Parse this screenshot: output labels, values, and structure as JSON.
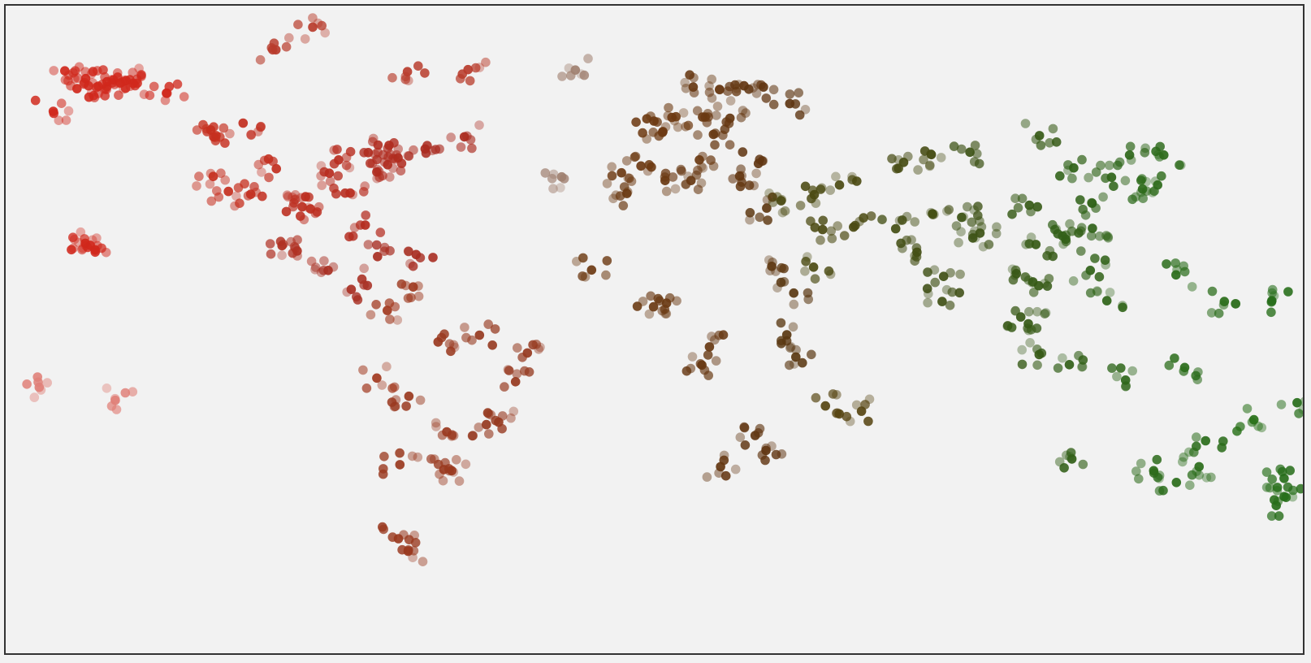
{
  "map": {
    "projection": "equirectangular",
    "marker_type": "dot",
    "colors": {
      "background": "#f2f2f2",
      "border": "#333333",
      "americas": "#c92c1f",
      "south_america": "#a23a20",
      "europe_africa": "#6d3a12",
      "middle_east_south_asia": "#4b4a12",
      "east_asia_oceania": "#2f6518"
    },
    "data_points": [
      {
        "region": "alaska",
        "lon": -151.9,
        "lat": 61.2,
        "color": "#d0281c"
      },
      {
        "region": "alaska",
        "lon": -150.1,
        "lat": 61.7,
        "color": "#d0281c"
      },
      {
        "region": "alaska",
        "lon": -148.2,
        "lat": 60.9,
        "color": "#d0281c"
      },
      {
        "region": "alaska",
        "lon": -146.6,
        "lat": 61.5,
        "color": "#d0281c"
      },
      {
        "region": "alaska",
        "lon": -144.6,
        "lat": 60.8,
        "color": "#d0281c"
      },
      {
        "region": "alaska",
        "lon": -154.3,
        "lat": 60.1,
        "color": "#d0281c"
      },
      {
        "region": "alaska",
        "lon": -157.8,
        "lat": 62.0,
        "color": "#d0281c"
      },
      {
        "region": "alaska",
        "lon": -160.2,
        "lat": 59.5,
        "color": "#d0281c"
      },
      {
        "region": "alaska",
        "lon": -163.6,
        "lat": 63.9,
        "color": "#d0281c"
      },
      {
        "region": "alaska",
        "lon": -166.8,
        "lat": 53.9,
        "color": "#d0281c"
      },
      {
        "region": "alaska",
        "lon": -135.4,
        "lat": 58.4,
        "color": "#d0281c"
      },
      {
        "region": "hawaii",
        "lon": -157.9,
        "lat": 21.3,
        "color": "#d0281c"
      },
      {
        "region": "hawaii",
        "lon": -156.5,
        "lat": 20.8,
        "color": "#d0281c"
      },
      {
        "region": "hawaii",
        "lon": -155.2,
        "lat": 19.7,
        "color": "#d0281c"
      },
      {
        "region": "pacific",
        "lon": -170.7,
        "lat": -14.3,
        "color": "#e08078"
      },
      {
        "region": "pacific",
        "lon": -149.6,
        "lat": -17.5,
        "color": "#e08078"
      },
      {
        "region": "us",
        "lon": -122.4,
        "lat": 37.8,
        "color": "#c63020"
      },
      {
        "region": "us",
        "lon": -118.2,
        "lat": 34.1,
        "color": "#c63020"
      },
      {
        "region": "us",
        "lon": -122.3,
        "lat": 47.6,
        "color": "#c63020"
      },
      {
        "region": "us",
        "lon": -104.9,
        "lat": 39.7,
        "color": "#c22f20"
      },
      {
        "region": "us",
        "lon": -112.0,
        "lat": 33.4,
        "color": "#c22f20"
      },
      {
        "region": "us",
        "lon": -97.7,
        "lat": 30.3,
        "color": "#bc2e20"
      },
      {
        "region": "us",
        "lon": -95.4,
        "lat": 29.8,
        "color": "#bc2e20"
      },
      {
        "region": "us",
        "lon": -96.8,
        "lat": 32.8,
        "color": "#bc2e20"
      },
      {
        "region": "us",
        "lon": -87.6,
        "lat": 41.9,
        "color": "#b82d20"
      },
      {
        "region": "us",
        "lon": -90.2,
        "lat": 38.6,
        "color": "#b82d20"
      },
      {
        "region": "us",
        "lon": -84.4,
        "lat": 33.7,
        "color": "#b82d20"
      },
      {
        "region": "us",
        "lon": -80.2,
        "lat": 25.8,
        "color": "#b42c20"
      },
      {
        "region": "us",
        "lon": -77.0,
        "lat": 38.9,
        "color": "#b02c20"
      },
      {
        "region": "us",
        "lon": -74.0,
        "lat": 40.7,
        "color": "#b02c20"
      },
      {
        "region": "us",
        "lon": -71.1,
        "lat": 42.4,
        "color": "#b02c20"
      },
      {
        "region": "canada",
        "lon": -79.4,
        "lat": 43.7,
        "color": "#b02c20"
      },
      {
        "region": "canada",
        "lon": -73.6,
        "lat": 45.5,
        "color": "#b02c20"
      },
      {
        "region": "canada",
        "lon": -123.1,
        "lat": 49.3,
        "color": "#c63020"
      },
      {
        "region": "canada",
        "lon": -114.1,
        "lat": 51.0,
        "color": "#c22f20"
      },
      {
        "region": "canada",
        "lon": -63.6,
        "lat": 44.6,
        "color": "#aa2b20"
      },
      {
        "region": "canada",
        "lon": -52.7,
        "lat": 47.6,
        "color": "#aa2b20"
      },
      {
        "region": "canada_north",
        "lon": -105.0,
        "lat": 69.1,
        "color": "#b83c2c"
      },
      {
        "region": "canada_north",
        "lon": -94.8,
        "lat": 74.7,
        "color": "#b83c2c"
      },
      {
        "region": "canada_north",
        "lon": -68.5,
        "lat": 63.7,
        "color": "#b83c2c"
      },
      {
        "region": "greenland",
        "lon": -51.7,
        "lat": 64.2,
        "color": "#b83c2c"
      },
      {
        "region": "mexico",
        "lon": -99.1,
        "lat": 19.4,
        "color": "#b03224"
      },
      {
        "region": "mexico",
        "lon": -103.3,
        "lat": 20.7,
        "color": "#b03224"
      },
      {
        "region": "central_america",
        "lon": -90.5,
        "lat": 14.6,
        "color": "#a83024"
      },
      {
        "region": "central_america",
        "lon": -84.1,
        "lat": 9.9,
        "color": "#a83024"
      },
      {
        "region": "caribbean",
        "lon": -66.1,
        "lat": 18.5,
        "color": "#a82e22"
      },
      {
        "region": "caribbean",
        "lon": -76.8,
        "lat": 18.0,
        "color": "#a82e22"
      },
      {
        "region": "south_america",
        "lon": -74.1,
        "lat": 4.7,
        "color": "#a23a20"
      },
      {
        "region": "south_america",
        "lon": -77.0,
        "lat": -12.0,
        "color": "#a23a20"
      },
      {
        "region": "south_america",
        "lon": -70.6,
        "lat": -33.4,
        "color": "#9a3a20"
      },
      {
        "region": "south_america",
        "lon": -58.4,
        "lat": -34.6,
        "color": "#9a3a20"
      },
      {
        "region": "south_america",
        "lon": -46.6,
        "lat": -23.5,
        "color": "#963a20"
      },
      {
        "region": "south_america",
        "lon": -43.2,
        "lat": -22.9,
        "color": "#963a20"
      },
      {
        "region": "south_america",
        "lon": -38.5,
        "lat": -12.9,
        "color": "#963a20"
      },
      {
        "region": "south_america",
        "lon": -35.2,
        "lat": -5.8,
        "color": "#963a20"
      },
      {
        "region": "south_america",
        "lon": -48.5,
        "lat": -1.4,
        "color": "#963a20"
      },
      {
        "region": "south_america",
        "lon": -60.0,
        "lat": -3.1,
        "color": "#9a3a20"
      },
      {
        "region": "south_america",
        "lon": -66.9,
        "lat": 10.5,
        "color": "#9e3a20"
      },
      {
        "region": "south_america",
        "lon": -68.1,
        "lat": -16.5,
        "color": "#9a3a20"
      },
      {
        "region": "south_america",
        "lon": -57.6,
        "lat": -25.3,
        "color": "#9a3a20"
      },
      {
        "region": "south_america",
        "lon": -56.2,
        "lat": -34.9,
        "color": "#9a3a20"
      },
      {
        "region": "south_america",
        "lon": -68.3,
        "lat": -54.8,
        "color": "#9a3a20"
      },
      {
        "region": "south_america",
        "lon": -71.0,
        "lat": -51.7,
        "color": "#9a3a20"
      },
      {
        "region": "europe",
        "lon": -0.1,
        "lat": 51.5,
        "color": "#6d3a12"
      },
      {
        "region": "europe",
        "lon": 2.4,
        "lat": 48.9,
        "color": "#6d3a12"
      },
      {
        "region": "europe",
        "lon": 13.4,
        "lat": 52.5,
        "color": "#6a3912"
      },
      {
        "region": "europe",
        "lon": 12.5,
        "lat": 41.9,
        "color": "#6a3912"
      },
      {
        "region": "europe",
        "lon": -3.7,
        "lat": 40.4,
        "color": "#6d3a12"
      },
      {
        "region": "europe",
        "lon": -9.1,
        "lat": 38.7,
        "color": "#6d3a12"
      },
      {
        "region": "europe",
        "lon": 4.9,
        "lat": 52.4,
        "color": "#6d3a12"
      },
      {
        "region": "europe",
        "lon": 18.1,
        "lat": 59.3,
        "color": "#673812"
      },
      {
        "region": "europe",
        "lon": 10.8,
        "lat": 59.9,
        "color": "#673812"
      },
      {
        "region": "europe",
        "lon": 24.9,
        "lat": 60.2,
        "color": "#643712"
      },
      {
        "region": "europe",
        "lon": 21.0,
        "lat": 52.2,
        "color": "#643712"
      },
      {
        "region": "europe",
        "lon": 16.4,
        "lat": 48.2,
        "color": "#673812"
      },
      {
        "region": "europe",
        "lon": 23.7,
        "lat": 37.9,
        "color": "#643712"
      },
      {
        "region": "europe",
        "lon": 28.9,
        "lat": 41.0,
        "color": "#613612"
      },
      {
        "region": "europe",
        "lon": 37.6,
        "lat": 55.8,
        "color": "#5e3612"
      },
      {
        "region": "europe",
        "lon": 30.3,
        "lat": 59.9,
        "color": "#613612"
      },
      {
        "region": "europe",
        "lon": -21.9,
        "lat": 64.1,
        "color": "#a08070"
      },
      {
        "region": "atlantic",
        "lon": -25.7,
        "lat": 37.7,
        "color": "#a08070"
      },
      {
        "region": "africa",
        "lon": -7.6,
        "lat": 33.6,
        "color": "#6a3912"
      },
      {
        "region": "africa",
        "lon": 3.0,
        "lat": 36.8,
        "color": "#6a3912"
      },
      {
        "region": "africa",
        "lon": 10.2,
        "lat": 36.8,
        "color": "#673812"
      },
      {
        "region": "africa",
        "lon": 31.2,
        "lat": 30.0,
        "color": "#5e3812"
      },
      {
        "region": "africa",
        "lon": -17.4,
        "lat": 14.7,
        "color": "#6d3a12"
      },
      {
        "region": "africa",
        "lon": 3.4,
        "lat": 6.5,
        "color": "#6a3912"
      },
      {
        "region": "africa",
        "lon": -0.2,
        "lat": 5.6,
        "color": "#6a3912"
      },
      {
        "region": "africa",
        "lon": 32.6,
        "lat": 15.6,
        "color": "#5e3812"
      },
      {
        "region": "africa",
        "lon": 38.7,
        "lat": 9.0,
        "color": "#5a3812"
      },
      {
        "region": "africa",
        "lon": 36.8,
        "lat": -1.3,
        "color": "#5a3812"
      },
      {
        "region": "africa",
        "lon": 39.3,
        "lat": -6.8,
        "color": "#5a3812"
      },
      {
        "region": "africa",
        "lon": 15.3,
        "lat": -4.3,
        "color": "#673812"
      },
      {
        "region": "africa",
        "lon": 13.2,
        "lat": -8.8,
        "color": "#673812"
      },
      {
        "region": "africa",
        "lon": 28.0,
        "lat": -26.2,
        "color": "#613612"
      },
      {
        "region": "africa",
        "lon": 18.4,
        "lat": -33.9,
        "color": "#643712"
      },
      {
        "region": "africa",
        "lon": 31.0,
        "lat": -29.9,
        "color": "#613612"
      },
      {
        "region": "africa",
        "lon": 47.5,
        "lat": -18.9,
        "color": "#574512"
      },
      {
        "region": "africa",
        "lon": 57.5,
        "lat": -20.2,
        "color": "#574512"
      },
      {
        "region": "middle_east",
        "lon": 35.2,
        "lat": 31.8,
        "color": "#4b4a12"
      },
      {
        "region": "middle_east",
        "lon": 44.4,
        "lat": 33.3,
        "color": "#4b4a12"
      },
      {
        "region": "middle_east",
        "lon": 51.4,
        "lat": 35.7,
        "color": "#4b4a12"
      },
      {
        "region": "middle_east",
        "lon": 46.7,
        "lat": 24.7,
        "color": "#4b4a12"
      },
      {
        "region": "middle_east",
        "lon": 55.3,
        "lat": 25.3,
        "color": "#4b4a12"
      },
      {
        "region": "middle_east",
        "lon": 44.2,
        "lat": 15.4,
        "color": "#4b4a12"
      },
      {
        "region": "central_asia",
        "lon": 69.2,
        "lat": 41.3,
        "color": "#474c14"
      },
      {
        "region": "central_asia",
        "lon": 76.9,
        "lat": 43.2,
        "color": "#474c14"
      },
      {
        "region": "south_asia",
        "lon": 67.0,
        "lat": 24.9,
        "color": "#434e14"
      },
      {
        "region": "south_asia",
        "lon": 72.9,
        "lat": 19.1,
        "color": "#434e14"
      },
      {
        "region": "south_asia",
        "lon": 77.2,
        "lat": 28.6,
        "color": "#434e14"
      },
      {
        "region": "south_asia",
        "lon": 80.3,
        "lat": 13.1,
        "color": "#405016"
      },
      {
        "region": "south_asia",
        "lon": 88.4,
        "lat": 22.6,
        "color": "#3d5216"
      },
      {
        "region": "south_asia",
        "lon": 90.4,
        "lat": 23.8,
        "color": "#3d5216"
      },
      {
        "region": "south_asia",
        "lon": 79.9,
        "lat": 6.9,
        "color": "#405016"
      },
      {
        "region": "south_asia",
        "lon": 85.3,
        "lat": 27.7,
        "color": "#3d5216"
      },
      {
        "region": "east_asia",
        "lon": 116.4,
        "lat": 39.9,
        "color": "#306218"
      },
      {
        "region": "east_asia",
        "lon": 121.5,
        "lat": 31.2,
        "color": "#306218"
      },
      {
        "region": "east_asia",
        "lon": 113.3,
        "lat": 23.1,
        "color": "#326018"
      },
      {
        "region": "east_asia",
        "lon": 104.1,
        "lat": 30.7,
        "color": "#365a16"
      },
      {
        "region": "east_asia",
        "lon": 126.9,
        "lat": 37.6,
        "color": "#2f6418"
      },
      {
        "region": "east_asia",
        "lon": 139.7,
        "lat": 35.7,
        "color": "#2c6a1a"
      },
      {
        "region": "east_asia",
        "lon": 135.5,
        "lat": 34.7,
        "color": "#2c6a1a"
      },
      {
        "region": "east_asia",
        "lon": 141.4,
        "lat": 43.1,
        "color": "#2c6a1a"
      },
      {
        "region": "east_asia",
        "lon": 121.6,
        "lat": 25.0,
        "color": "#306218"
      },
      {
        "region": "east_asia",
        "lon": 114.2,
        "lat": 22.3,
        "color": "#326018"
      },
      {
        "region": "east_asia",
        "lon": 87.6,
        "lat": 43.8,
        "color": "#3d5216"
      },
      {
        "region": "east_asia",
        "lon": 106.9,
        "lat": 47.9,
        "color": "#365a16"
      },
      {
        "region": "east_asia",
        "lon": 131.9,
        "lat": 43.1,
        "color": "#2e661a"
      },
      {
        "region": "southeast_asia",
        "lon": 100.5,
        "lat": 13.8,
        "color": "#385816"
      },
      {
        "region": "southeast_asia",
        "lon": 105.9,
        "lat": 21.0,
        "color": "#365a16"
      },
      {
        "region": "southeast_asia",
        "lon": 106.7,
        "lat": 10.8,
        "color": "#365a16"
      },
      {
        "region": "southeast_asia",
        "lon": 101.7,
        "lat": 3.1,
        "color": "#385816"
      },
      {
        "region": "southeast_asia",
        "lon": 103.8,
        "lat": 1.4,
        "color": "#365a16"
      },
      {
        "region": "southeast_asia",
        "lon": 106.8,
        "lat": -6.2,
        "color": "#365a16"
      },
      {
        "region": "southeast_asia",
        "lon": 115.2,
        "lat": -8.7,
        "color": "#326018"
      },
      {
        "region": "southeast_asia",
        "lon": 121.0,
        "lat": 14.6,
        "color": "#306218"
      },
      {
        "region": "southeast_asia",
        "lon": 125.6,
        "lat": 7.1,
        "color": "#2f6418"
      },
      {
        "region": "oceania",
        "lon": 151.2,
        "lat": -33.9,
        "color": "#2a6c1a"
      },
      {
        "region": "oceania",
        "lon": 144.9,
        "lat": -37.8,
        "color": "#2a6c1a"
      },
      {
        "region": "oceania",
        "lon": 153.0,
        "lat": -27.5,
        "color": "#2a6c1a"
      },
      {
        "region": "oceania",
        "lon": 115.9,
        "lat": -32.0,
        "color": "#326018"
      },
      {
        "region": "oceania",
        "lon": 138.6,
        "lat": -34.9,
        "color": "#2c6a1a"
      },
      {
        "region": "oceania",
        "lon": 130.8,
        "lat": -12.5,
        "color": "#2e661a"
      },
      {
        "region": "oceania",
        "lon": 174.8,
        "lat": -36.8,
        "color": "#276e1a"
      },
      {
        "region": "oceania",
        "lon": 174.8,
        "lat": -41.3,
        "color": "#276e1a"
      },
      {
        "region": "oceania",
        "lon": 172.6,
        "lat": -43.5,
        "color": "#276e1a"
      },
      {
        "region": "oceania",
        "lon": 147.2,
        "lat": -9.4,
        "color": "#2a6c1a"
      },
      {
        "region": "oceania",
        "lon": 178.4,
        "lat": -18.1,
        "color": "#276e1a"
      },
      {
        "region": "oceania",
        "lon": 166.4,
        "lat": -22.3,
        "color": "#287018"
      },
      {
        "region": "pacific",
        "lon": 158.2,
        "lat": 6.9,
        "color": "#2a6c1a"
      },
      {
        "region": "pacific",
        "lon": 171.4,
        "lat": 7.1,
        "color": "#276e1a"
      },
      {
        "region": "pacific",
        "lon": 144.8,
        "lat": 13.5,
        "color": "#2a6c1a"
      }
    ]
  }
}
